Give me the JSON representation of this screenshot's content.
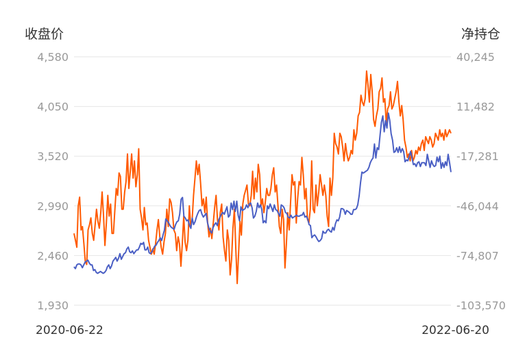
{
  "chart_data": {
    "type": "line",
    "left_axis_title": "收盘价",
    "right_axis_title": "净持仓",
    "x_start_label": "2020-06-22",
    "x_end_label": "2022-06-20",
    "left_ticks": [
      "4,580",
      "4,050",
      "3,520",
      "2,990",
      "2,460",
      "1,930"
    ],
    "right_ticks": [
      "40,245",
      "11,482",
      "-17,281",
      "-46,044",
      "-74,807",
      "-103,570"
    ],
    "left_range": [
      1930,
      4580
    ],
    "right_range": [
      -103570,
      40245
    ],
    "grid": true,
    "series": [
      {
        "name": "",
        "axis": "left",
        "color": "#4a5fc4",
        "values": [
          2340,
          2320,
          2360,
          2370,
          2370,
          2360,
          2330,
          2360,
          2390,
          2400,
          2410,
          2380,
          2360,
          2360,
          2300,
          2310,
          2280,
          2270,
          2280,
          2290,
          2280,
          2270,
          2280,
          2300,
          2340,
          2360,
          2320,
          2350,
          2400,
          2420,
          2440,
          2400,
          2430,
          2480,
          2420,
          2450,
          2480,
          2490,
          2530,
          2550,
          2500,
          2490,
          2510,
          2480,
          2500,
          2520,
          2520,
          2550,
          2590,
          2580,
          2600,
          2520,
          2520,
          2550,
          2490,
          2480,
          2500,
          2530,
          2560,
          2570,
          2600,
          2620,
          2650,
          2620,
          2680,
          2730,
          2850,
          2830,
          2810,
          2780,
          2760,
          2750,
          2740,
          2790,
          2820,
          2830,
          2900,
          3060,
          3080,
          2880,
          2860,
          2830,
          2840,
          2780,
          2750,
          2860,
          2790,
          2820,
          2870,
          2910,
          2940,
          2950,
          2900,
          2870,
          2890,
          2910,
          2810,
          2750,
          2720,
          2700,
          2760,
          2790,
          2810,
          2780,
          2840,
          2870,
          2900,
          2920,
          2900,
          2940,
          2980,
          2870,
          2890,
          3020,
          2950,
          3040,
          2930,
          3040,
          2890,
          2830,
          2980,
          2940,
          2950,
          2960,
          3000,
          2970,
          3010,
          3020,
          2970,
          2860,
          2880,
          2930,
          3020,
          2970,
          3000,
          2950,
          2810,
          2830,
          2810,
          2990,
          2960,
          3010,
          2970,
          2930,
          3000,
          2950,
          2940,
          2910,
          2880,
          3000,
          2990,
          2970,
          2920,
          2910,
          2870,
          2860,
          2890,
          2860,
          2870,
          2880,
          2890,
          2880,
          2880,
          2890,
          2890,
          2920,
          2870,
          2880,
          2850,
          2790,
          2780,
          2650,
          2670,
          2680,
          2660,
          2630,
          2610,
          2620,
          2640,
          2720,
          2700,
          2700,
          2730,
          2740,
          2720,
          2710,
          2760,
          2730,
          2800,
          2840,
          2830,
          2870,
          2960,
          2960,
          2950,
          2900,
          2940,
          2930,
          2920,
          2900,
          2900,
          2950,
          2950,
          2960,
          3000,
          3100,
          3240,
          3350,
          3340,
          3350,
          3360,
          3370,
          3400,
          3450,
          3480,
          3500,
          3650,
          3500,
          3610,
          3590,
          3740,
          3880,
          3950,
          3780,
          3900,
          3820,
          3980,
          3900,
          3760,
          3690,
          3560,
          3570,
          3610,
          3560,
          3620,
          3560,
          3600,
          3570,
          3460,
          3480,
          3470,
          3520,
          3570,
          3500,
          3430,
          3440,
          3410,
          3450,
          3460,
          3410,
          3450,
          3450,
          3450,
          3420,
          3540,
          3470,
          3400,
          3470,
          3430,
          3410,
          3420,
          3510,
          3460,
          3520,
          3390,
          3450,
          3400,
          3460,
          3420,
          3540,
          3450,
          3350
        ]
      },
      {
        "name": "",
        "axis": "right",
        "color": "#ff5a00",
        "values": [
          -62000,
          -66000,
          -70000,
          -46000,
          -41000,
          -60000,
          -58000,
          -68000,
          -78000,
          -80000,
          -60000,
          -57000,
          -53000,
          -62000,
          -66000,
          -57000,
          -48000,
          -55000,
          -59000,
          -50000,
          -38000,
          -52000,
          -69000,
          -56000,
          -40000,
          -52000,
          -45000,
          -62000,
          -62000,
          -49000,
          -36000,
          -40000,
          -27000,
          -29000,
          -48000,
          -48000,
          -38000,
          -32000,
          -16000,
          -36000,
          -26000,
          -16000,
          -30000,
          -20000,
          -35000,
          -28000,
          -13000,
          -48000,
          -53000,
          -60000,
          -47000,
          -57000,
          -56000,
          -66000,
          -70000,
          -74000,
          -71000,
          -74000,
          -68000,
          -60000,
          -54000,
          -64000,
          -70000,
          -74000,
          -67000,
          -62000,
          -48000,
          -58000,
          -42000,
          -44000,
          -50000,
          -60000,
          -62000,
          -72000,
          -64000,
          -68000,
          -81000,
          -68000,
          -52000,
          -67000,
          -72000,
          -66000,
          -46000,
          -58000,
          -54000,
          -40000,
          -30000,
          -20000,
          -28000,
          -22000,
          -33000,
          -46000,
          -42000,
          -50000,
          -41000,
          -56000,
          -64000,
          -59000,
          -65000,
          -56000,
          -47000,
          -40000,
          -54000,
          -60000,
          -50000,
          -45000,
          -64000,
          -72000,
          -78000,
          -60000,
          -66000,
          -86000,
          -77000,
          -59000,
          -48000,
          -70000,
          -91000,
          -74000,
          -55000,
          -63000,
          -45000,
          -40000,
          -37000,
          -34000,
          -45000,
          -46000,
          -40000,
          -26000,
          -42000,
          -30000,
          -38000,
          -22000,
          -28000,
          -46000,
          -42000,
          -50000,
          -44000,
          -36000,
          -40000,
          -40000,
          -36000,
          -28000,
          -24000,
          -38000,
          -34000,
          -46000,
          -58000,
          -62000,
          -48000,
          -54000,
          -82000,
          -68000,
          -50000,
          -60000,
          -44000,
          -28000,
          -34000,
          -32000,
          -56000,
          -42000,
          -32000,
          -34000,
          -18000,
          -28000,
          -42000,
          -36000,
          -54000,
          -56000,
          -48000,
          -20000,
          -48000,
          -50000,
          -34000,
          -46000,
          -38000,
          -28000,
          -34000,
          -40000,
          -34000,
          -40000,
          -52000,
          -58000,
          -30000,
          -40000,
          -30000,
          -4000,
          -10000,
          -12000,
          -16000,
          -4000,
          -6000,
          -12000,
          -20000,
          -10000,
          -16000,
          -20000,
          -18000,
          -14000,
          -16000,
          -2000,
          -8000,
          -4000,
          6000,
          8000,
          18000,
          14000,
          12000,
          16000,
          32000,
          24000,
          14000,
          30000,
          20000,
          4000,
          0,
          6000,
          10000,
          20000,
          22000,
          28000,
          14000,
          16000,
          2000,
          10000,
          12000,
          20000,
          10000,
          12000,
          16000,
          20000,
          26000,
          14000,
          6000,
          12000,
          4000,
          -8000,
          -12000,
          -18000,
          -16000,
          -20000,
          -14000,
          -20000,
          -18000,
          -14000,
          -16000,
          -12000,
          -14000,
          -10000,
          -8000,
          -14000,
          -6000,
          -8000,
          -10000,
          -6000,
          -8000,
          -12000,
          -10000,
          -4000,
          -6000,
          -8000,
          -2000,
          -6000,
          -4000,
          -8000,
          -2000,
          -6000,
          -4000,
          -2000,
          -4000
        ]
      }
    ]
  }
}
